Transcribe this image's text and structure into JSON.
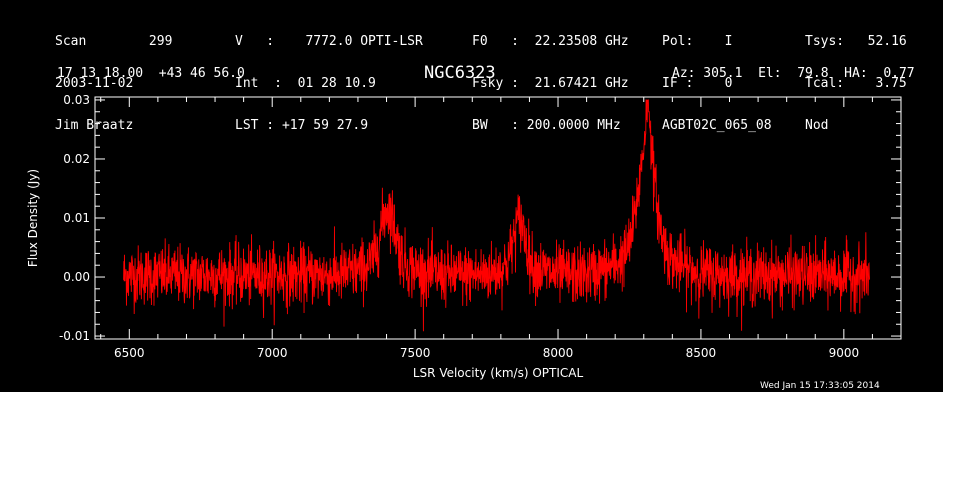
{
  "header": {
    "col1": [
      "Scan        299",
      "2003-11-02",
      "Jim Braatz"
    ],
    "col2": [
      "V   :    7772.0 OPTI-LSR",
      "Int  :  01 28 10.9",
      "LST : +17 59 27.9"
    ],
    "col3": [
      "F0   :  22.23508 GHz",
      "Fsky :  21.67421 GHz",
      "BW   : 200.0000 MHz"
    ],
    "col4": [
      "Pol:    I",
      "IF :    0",
      "AGBT02C_065_08"
    ],
    "col5": [
      "Tsys:   52.16",
      "Tcal:    3.75",
      "Nod"
    ],
    "coords": "17 13 18.00  +43 46 56.0",
    "source": "NGC6323",
    "azel": "Az: 305.1  El:  79.8  HA:  0.77",
    "timestamp": "Wed Jan 15 17:33:05 2014"
  },
  "colors": {
    "background": "#000000",
    "foreground": "#ffffff",
    "trace": "#ff0000"
  },
  "chart_data": {
    "type": "line",
    "title": "NGC6323",
    "xlabel": "LSR Velocity (km/s) OPTICAL",
    "ylabel": "Flux Density (Jy)",
    "xlim": [
      6380,
      9200
    ],
    "ylim": [
      -0.0105,
      0.0305
    ],
    "xticks": [
      6500,
      7000,
      7500,
      8000,
      8500,
      9000
    ],
    "xtick_labels": [
      "6500",
      "7000",
      "7500",
      "8000",
      "8500",
      "9000"
    ],
    "yticks": [
      -0.01,
      0.0,
      0.01,
      0.02,
      0.03
    ],
    "ytick_labels": [
      "-0.01",
      "0.00",
      "0.01",
      "0.02",
      "0.03"
    ],
    "x_range": [
      6480,
      9090
    ],
    "noise_rms": 0.0025,
    "features": [
      {
        "center": 7405,
        "peak": 0.009,
        "width": 25
      },
      {
        "center": 7865,
        "peak": 0.0075,
        "width": 20
      },
      {
        "center": 8310,
        "peak": 0.016,
        "width": 30
      },
      {
        "center": 8315,
        "peak": 0.008,
        "width": 8
      }
    ],
    "max_peak": {
      "x": 8318,
      "y": 0.028
    },
    "grid": false,
    "legend": "none"
  }
}
